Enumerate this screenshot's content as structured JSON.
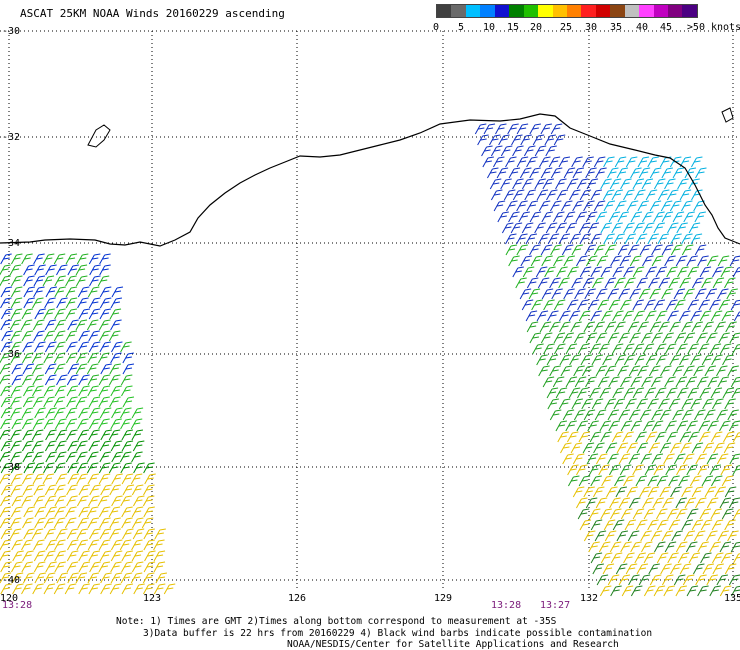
{
  "title": "ASCAT 25KM NOAA Winds 20160229 ascending",
  "legend": {
    "colors": [
      "#404040",
      "#6a6a6a",
      "#00bfff",
      "#0080ff",
      "#1010d0",
      "#008000",
      "#20c000",
      "#ffff00",
      "#ffc000",
      "#ff8000",
      "#ff2020",
      "#d00000",
      "#8b4513",
      "#c0c0c0",
      "#ff40ff",
      "#c000c0",
      "#800080",
      "#4b0082"
    ],
    "labels": [
      "0",
      "5",
      "10",
      "15",
      "20",
      "25",
      "30",
      "35",
      "40",
      "45",
      ">50 knots"
    ]
  },
  "lat_labels": [
    "-30",
    "-32",
    "-34",
    "-36",
    "-38",
    "-40"
  ],
  "lon_labels": [
    "120",
    "123",
    "126",
    "129",
    "132",
    "135"
  ],
  "times": [
    "13:28",
    "13:28",
    "13:27"
  ],
  "notes": [
    "Note: 1) Times are GMT 2)Times along bottom correspond to measurement at -35S",
    "3)Data buffer is 22 hrs from 20160229 4) Black wind barbs indicate possible contamination",
    "NOAA/NESDIS/Center for Satellite Applications and Research"
  ]
}
